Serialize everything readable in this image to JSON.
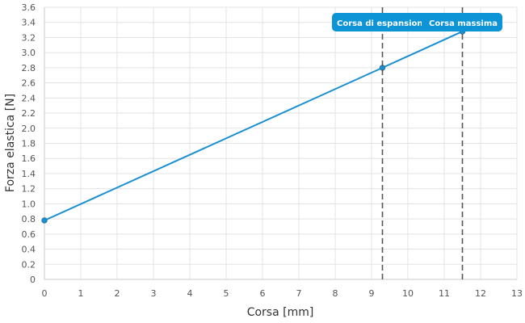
{
  "chart_data": {
    "type": "line",
    "xlabel": "Corsa [mm]",
    "ylabel": "Forza elastica [N]",
    "xlim": [
      0,
      13
    ],
    "ylim": [
      0,
      3.6
    ],
    "x_ticks": [
      "0",
      "1",
      "2",
      "3",
      "4",
      "5",
      "6",
      "7",
      "8",
      "9",
      "10",
      "11",
      "12",
      "13"
    ],
    "y_ticks": [
      "0",
      "0.2",
      "0.4",
      "0.6",
      "0.8",
      "1.0",
      "1.2",
      "1.4",
      "1.6",
      "1.8",
      "2.0",
      "2.2",
      "2.4",
      "2.6",
      "2.8",
      "3.0",
      "3.2",
      "3.4",
      "3.6"
    ],
    "grid": true,
    "series": [
      {
        "points": [
          {
            "x": 0,
            "y": 0.78
          },
          {
            "x": 9.3,
            "y": 2.8
          },
          {
            "x": 11.5,
            "y": 3.28
          }
        ]
      }
    ],
    "annotations": [
      {
        "label": "Corsa di espansione",
        "x": 9.3
      },
      {
        "label": "Corsa massima",
        "x": 11.5
      }
    ],
    "colors": {
      "line": "#1a8fd1",
      "grid": "#e3e3e3",
      "annotation_bg": "#0d94d6",
      "annotation_line": "#555555"
    }
  }
}
